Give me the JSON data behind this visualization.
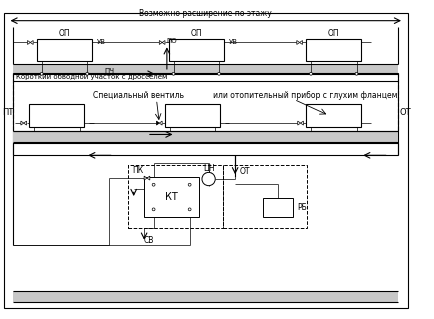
{
  "bg_color": "#ffffff",
  "line_color": "#000000",
  "title_text": "Возможно расширение по этажу",
  "label_PT": "ПТ",
  "label_OT": "ОТ",
  "label_short_bypass": "Короткий обводной участок с дросселем",
  "label_special_valve": "Специальный вентиль",
  "label_or_heater": "или отопительный прибор с глухим фланцем",
  "label_OP": "ОП",
  "label_UV": "УВ",
  "label_PCH": "ПЧ",
  "label_PO": "ПО",
  "label_PK": "ПК",
  "label_CN": "ЦН",
  "label_OT2": "ОТ",
  "label_KT": "КТ",
  "label_RB": "РБ",
  "label_SV": "СВ",
  "hatch_facecolor": "#c8c8c8"
}
